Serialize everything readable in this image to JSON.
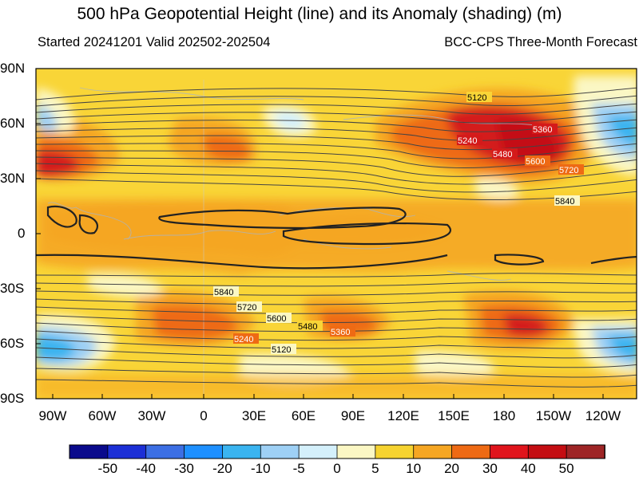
{
  "title": "500 hPa Geopotential Height (line) and its Anomaly (shading) (m)",
  "subtitle_left": "Started 20241201  Valid 202502-202504",
  "subtitle_right": "BCC-CPS Three-Month Forecast",
  "lat_ticks": [
    "90N",
    "60N",
    "30N",
    "0",
    "30S",
    "60S",
    "90S"
  ],
  "lon_ticks": [
    "90W",
    "60W",
    "30W",
    "0",
    "30E",
    "60E",
    "90E",
    "120E",
    "150E",
    "180",
    "150W",
    "120W"
  ],
  "contour_labels": {
    "north": [
      "5120",
      "5360",
      "5240",
      "5480",
      "5600",
      "5720",
      "5840"
    ],
    "south": [
      "5840",
      "5720",
      "5600",
      "5480",
      "5360",
      "5240",
      "5120"
    ]
  },
  "colorbar": {
    "labels": [
      "-50",
      "-40",
      "-30",
      "-20",
      "-10",
      "-5",
      "0",
      "5",
      "10",
      "20",
      "30",
      "40",
      "50"
    ],
    "colors": [
      "#0a0a8c",
      "#1c2fd6",
      "#3c6fe4",
      "#1e90ff",
      "#3ab4f0",
      "#9ed0f5",
      "#d4f0fb",
      "#fbf7c4",
      "#f6d330",
      "#f5a623",
      "#ee6a14",
      "#e0141c",
      "#c40d12",
      "#9e2526"
    ]
  },
  "colors": {
    "base_yellow": "#f9d537",
    "orange": "#f5a623",
    "dark_orange": "#ee6a14",
    "red": "#d41a1a",
    "pale": "#fbf7c4",
    "light_blue": "#d4f0fb",
    "blue": "#3ab4f0"
  }
}
